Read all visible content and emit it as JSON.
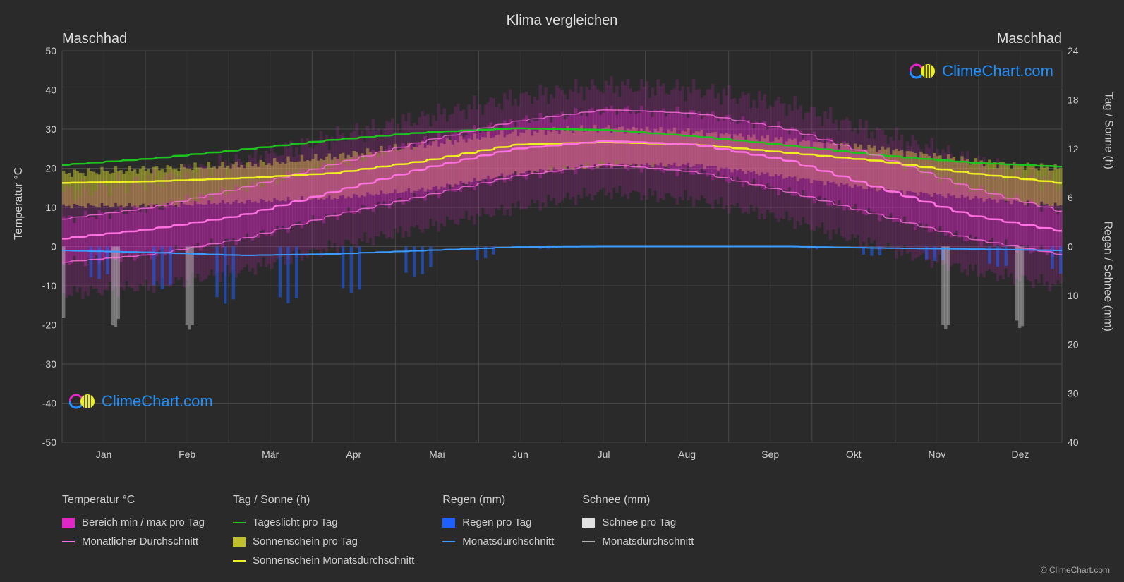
{
  "title": "Klima vergleichen",
  "location_left": "Maschhad",
  "location_right": "Maschhad",
  "copyright": "© ClimeChart.com",
  "watermark_text": "ClimeChart.com",
  "axes": {
    "left_label": "Temperatur °C",
    "right_label_top": "Tag / Sonne (h)",
    "right_label_bottom": "Regen / Schnee (mm)",
    "left_ticks": [
      50,
      40,
      30,
      20,
      10,
      0,
      -10,
      -20,
      -30,
      -40,
      -50
    ],
    "right_top_ticks": [
      24,
      18,
      12,
      6,
      0
    ],
    "right_bottom_ticks": [
      0,
      10,
      20,
      30,
      40
    ],
    "months": [
      "Jan",
      "Feb",
      "Mär",
      "Apr",
      "Mai",
      "Jun",
      "Jul",
      "Aug",
      "Sep",
      "Okt",
      "Nov",
      "Dez"
    ]
  },
  "style": {
    "background_color": "#2a2a2a",
    "grid_color": "#555555",
    "axis_text_color": "#d0d0d0",
    "title_fontsize": 20,
    "label_fontsize": 16,
    "tick_fontsize": 14,
    "left_ylim": [
      -50,
      50
    ],
    "right_top_ylim": [
      0,
      24
    ],
    "right_bottom_ylim": [
      0,
      40
    ]
  },
  "colors": {
    "temp_range": "#e028c8",
    "temp_avg": "#ff70e0",
    "daylight": "#1ec41e",
    "sunshine_bars": "#bfbf30",
    "sunshine_avg": "#f0f020",
    "rain_bars": "#1e60ff",
    "rain_avg": "#3a9cff",
    "snow_bars": "#e0e0e0",
    "snow_avg": "#b0b0b0"
  },
  "series": {
    "daylight_hours": [
      10.0,
      10.8,
      11.9,
      13.1,
      14.0,
      14.5,
      14.3,
      13.5,
      12.4,
      11.2,
      10.3,
      9.8
    ],
    "sunshine_avg_hours": [
      7.8,
      8.0,
      8.4,
      9.0,
      10.5,
      12.5,
      12.8,
      12.5,
      11.5,
      10.5,
      9.0,
      7.8
    ],
    "temp_avg_c": [
      2.0,
      4.5,
      8.0,
      14.0,
      20.0,
      25.0,
      27.0,
      26.0,
      22.0,
      15.0,
      8.0,
      4.0
    ],
    "rain_avg_mm": [
      0.8,
      1.2,
      1.8,
      1.5,
      0.8,
      0.1,
      0.0,
      0.0,
      0.0,
      0.3,
      0.5,
      0.8
    ],
    "temp_min_c": [
      -4,
      -2,
      2,
      8,
      13,
      18,
      21,
      19,
      14,
      8,
      2,
      -2
    ],
    "temp_max_c": [
      7,
      10,
      15,
      21,
      27,
      32,
      35,
      34,
      30,
      23,
      15,
      9
    ],
    "temp_extreme_min_c": [
      -12,
      -10,
      -6,
      0,
      5,
      10,
      14,
      12,
      7,
      0,
      -6,
      -10
    ],
    "temp_extreme_max_c": [
      14,
      17,
      22,
      28,
      33,
      38,
      41,
      40,
      36,
      29,
      22,
      16
    ],
    "sunshine_daily_low": [
      5,
      5,
      5.5,
      6,
      7,
      9,
      10,
      10,
      8.5,
      7,
      6,
      5
    ],
    "sunshine_daily_high": [
      9,
      9.5,
      10,
      11,
      12.5,
      14,
      14.5,
      14,
      13,
      12,
      10.5,
      9.5
    ]
  },
  "legend": {
    "columns": [
      {
        "heading": "Temperatur °C",
        "items": [
          {
            "type": "swatch",
            "color_key": "temp_range",
            "label": "Bereich min / max pro Tag"
          },
          {
            "type": "line",
            "color_key": "temp_avg",
            "label": "Monatlicher Durchschnitt"
          }
        ]
      },
      {
        "heading": "Tag / Sonne (h)",
        "items": [
          {
            "type": "line",
            "color_key": "daylight",
            "label": "Tageslicht pro Tag"
          },
          {
            "type": "swatch",
            "color_key": "sunshine_bars",
            "label": "Sonnenschein pro Tag"
          },
          {
            "type": "line",
            "color_key": "sunshine_avg",
            "label": "Sonnenschein Monatsdurchschnitt"
          }
        ]
      },
      {
        "heading": "Regen (mm)",
        "items": [
          {
            "type": "swatch",
            "color_key": "rain_bars",
            "label": "Regen pro Tag"
          },
          {
            "type": "line",
            "color_key": "rain_avg",
            "label": "Monatsdurchschnitt"
          }
        ]
      },
      {
        "heading": "Schnee (mm)",
        "items": [
          {
            "type": "swatch",
            "color_key": "snow_bars",
            "label": "Schnee pro Tag"
          },
          {
            "type": "line",
            "color_key": "snow_avg",
            "label": "Monatsdurchschnitt"
          }
        ]
      }
    ]
  }
}
